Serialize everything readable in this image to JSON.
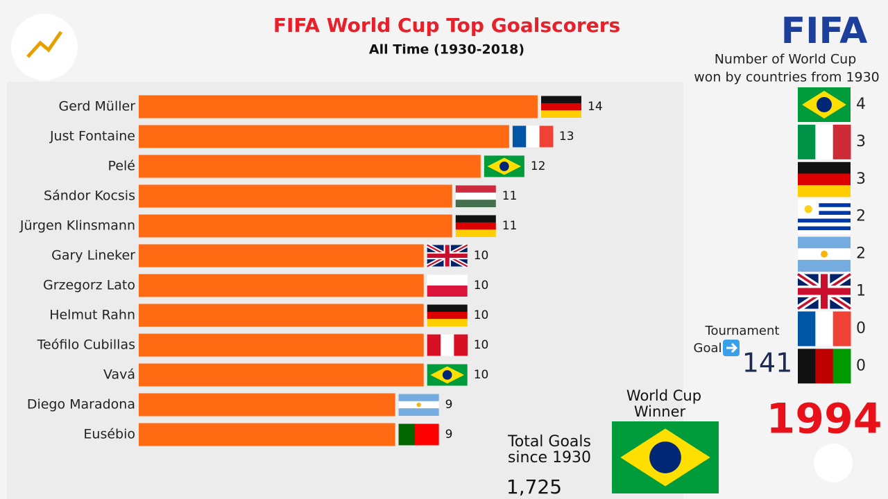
{
  "chart_data": [
    {
      "type": "bar",
      "orientation": "horizontal",
      "title": "FIFA World Cup Top Goalscorers",
      "subtitle": "All Time (1930-2018)",
      "categories": [
        "Gerd Müller",
        "Just Fontaine",
        "Pelé",
        "Sándor Kocsis",
        "Jürgen Klinsmann",
        "Gary Lineker",
        "Grzegorz Lato",
        "Helmut Rahn",
        "Teófilo Cubillas",
        "Vavá",
        "Diego Maradona",
        "Eusébio"
      ],
      "values": [
        14,
        13,
        12,
        11,
        11,
        10,
        10,
        10,
        10,
        10,
        9,
        9
      ],
      "color": "#ff6a13",
      "xlim": [
        0,
        14
      ]
    },
    {
      "type": "bar",
      "orientation": "horizontal",
      "title_lines": [
        "Number of World Cup",
        "won by countries from 1930"
      ],
      "categories": [
        null,
        null,
        null,
        null,
        null,
        null,
        null,
        null
      ],
      "values": [
        4,
        3,
        3,
        2,
        2,
        1,
        0,
        0
      ]
    }
  ],
  "panel": {
    "logo": "FIFA",
    "tournament_label_lines": [
      "Tournament",
      "Goal"
    ],
    "tournament_goals": 141,
    "winner_lines": [
      "World Cup",
      "Winner"
    ],
    "total_label_lines": [
      "Total Goals",
      "since 1930"
    ],
    "total_goals": 1725,
    "total_goals_label": "1,725",
    "year": 1994
  }
}
